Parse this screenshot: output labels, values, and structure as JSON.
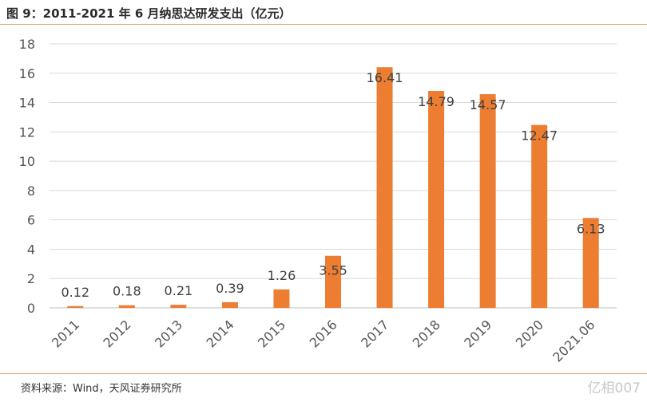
{
  "title": "图 9：2011-2021 年 6 月纳思达研发支出（亿元）",
  "source": "资料来源：Wind，天风证券研究所",
  "watermark": "亿相007",
  "colors": {
    "bar": "#ed7d31",
    "grid": "#d9d9d9",
    "rule": "#e9a064"
  },
  "chart_data": {
    "type": "bar",
    "title": "图 9：2011-2021 年 6 月纳思达研发支出（亿元）",
    "categories": [
      "2011",
      "2012",
      "2013",
      "2014",
      "2015",
      "2016",
      "2017",
      "2018",
      "2019",
      "2020",
      "2021.06"
    ],
    "values": [
      0.12,
      0.18,
      0.21,
      0.39,
      1.26,
      3.55,
      16.41,
      14.79,
      14.57,
      12.47,
      6.13
    ],
    "value_labels": [
      "0.12",
      "0.18",
      "0.21",
      "0.39",
      "1.26",
      "3.55",
      "16.41",
      "14.79",
      "14.57",
      "12.47",
      "6.13"
    ],
    "yticks": [
      0,
      2,
      4,
      6,
      8,
      10,
      12,
      14,
      16,
      18
    ],
    "ylim": [
      0,
      18
    ],
    "xlabel": "",
    "ylabel": "",
    "grid": true,
    "legend": "none"
  }
}
